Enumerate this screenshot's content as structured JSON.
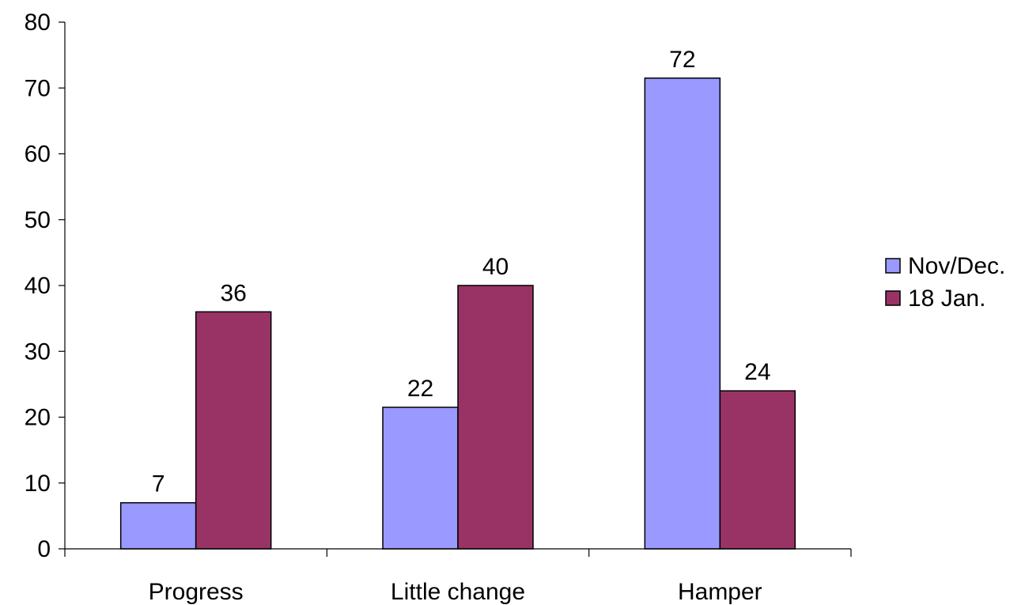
{
  "chart_data": {
    "type": "bar",
    "categories": [
      "Progress",
      "Little change",
      "Hamper"
    ],
    "series": [
      {
        "name": "Nov/Dec.",
        "values": [
          7,
          21.5,
          71.5
        ],
        "labels": [
          "7",
          "22",
          "72"
        ],
        "color": "#9999FF"
      },
      {
        "name": "18 Jan.",
        "values": [
          36,
          40,
          24
        ],
        "labels": [
          "36",
          "40",
          "24"
        ],
        "color": "#993366"
      }
    ],
    "ylim": [
      0,
      80
    ],
    "yticks": [
      0,
      10,
      20,
      30,
      40,
      50,
      60,
      70,
      80
    ],
    "legend": "right",
    "grid": false,
    "title": "",
    "xlabel": "",
    "ylabel": ""
  }
}
